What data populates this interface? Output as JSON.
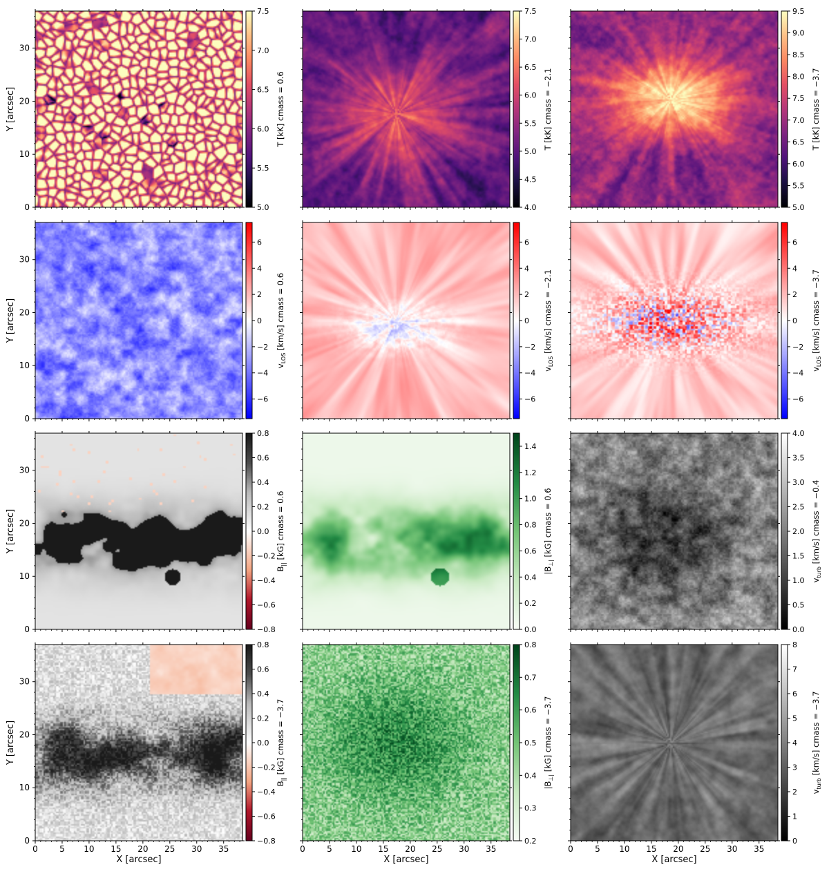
{
  "chart_data": {
    "type": "heatmap",
    "layout": "4 rows x 3 columns of image panels, each with its own colorbar",
    "shared_x": {
      "label": "X [arcsec]",
      "ticks": [
        0,
        5,
        10,
        15,
        20,
        25,
        30,
        35
      ],
      "range": [
        0,
        38.5
      ]
    },
    "shared_y": {
      "label": "Y [arcsec]",
      "ticks": [
        0,
        10,
        20,
        30
      ],
      "range": [
        0,
        37
      ]
    },
    "panels": [
      {
        "id": "T-0.6",
        "colorbar_label": "T [kK] cmass = 0.6",
        "colormap": "magma",
        "range": [
          5.0,
          7.5
        ],
        "ticks": [
          "5.0",
          "5.5",
          "6.0",
          "6.5",
          "7.0",
          "7.5"
        ],
        "pattern": "granulation"
      },
      {
        "id": "T-2.1",
        "colorbar_label": "T [kK] cmass = −2.1",
        "colormap": "magma",
        "range": [
          4.0,
          7.5
        ],
        "ticks": [
          "4.0",
          "4.5",
          "5.0",
          "5.5",
          "6.0",
          "6.5",
          "7.0",
          "7.5"
        ],
        "pattern": "fibrils"
      },
      {
        "id": "T-3.7",
        "colorbar_label": "T [kK] cmass = −3.7",
        "colormap": "magma",
        "range": [
          5.0,
          9.5
        ],
        "ticks": [
          "5.0",
          "5.5",
          "6.0",
          "6.5",
          "7.0",
          "7.5",
          "8.0",
          "8.5",
          "9.0",
          "9.5"
        ],
        "pattern": "bright-core"
      },
      {
        "id": "v-0.6",
        "colorbar_label": "v_LOS [km/s] cmass = 0.6",
        "colormap": "bwr",
        "range": [
          -7.5,
          7.5
        ],
        "ticks": [
          "−6",
          "−4",
          "−2",
          "0",
          "2",
          "4",
          "6"
        ],
        "pattern": "blue-granular"
      },
      {
        "id": "v-2.1",
        "colorbar_label": "v_LOS [km/s] cmass = −2.1",
        "colormap": "bwr",
        "range": [
          -7.5,
          7.5
        ],
        "ticks": [
          "−6",
          "−4",
          "−2",
          "0",
          "2",
          "4",
          "6"
        ],
        "pattern": "red-fibrils"
      },
      {
        "id": "v-3.7",
        "colorbar_label": "v_LOS [km/s] cmass = −3.7",
        "colormap": "bwr",
        "range": [
          -7.5,
          7.5
        ],
        "ticks": [
          "−6",
          "−4",
          "−2",
          "0",
          "2",
          "4",
          "6"
        ],
        "pattern": "mixed-core"
      },
      {
        "id": "Bpar-0.6",
        "colorbar_label": "B_|| [kG] cmass = 0.6",
        "colormap": "RdGy_r",
        "range": [
          -0.8,
          0.8
        ],
        "ticks": [
          "−0.8",
          "−0.6",
          "−0.4",
          "−0.2",
          "0.0",
          "0.2",
          "0.4",
          "0.6",
          "0.8"
        ],
        "pattern": "black-network"
      },
      {
        "id": "Bperp-0.6",
        "colorbar_label": "|B_⊥| [kG] cmass = 0.6",
        "colormap": "Greens",
        "range": [
          0.0,
          1.5
        ],
        "ticks": [
          "0.0",
          "0.2",
          "0.4",
          "0.6",
          "0.8",
          "1.0",
          "1.2",
          "1.4"
        ],
        "pattern": "green-network"
      },
      {
        "id": "vturb-0.4",
        "colorbar_label": "v_turb [km/s] cmass = −0.4",
        "colormap": "gray",
        "range": [
          0.0,
          4.0
        ],
        "ticks": [
          "0.0",
          "0.5",
          "1.0",
          "1.5",
          "2.0",
          "2.5",
          "3.0",
          "3.5",
          "4.0"
        ],
        "pattern": "dark-patchy"
      },
      {
        "id": "Bpar-3.7",
        "colorbar_label": "B_|| [kG] cmass = −3.7",
        "colormap": "RdGy_r",
        "range": [
          -0.8,
          0.8
        ],
        "ticks": [
          "−0.8",
          "−0.6",
          "−0.4",
          "−0.2",
          "0.0",
          "0.2",
          "0.4",
          "0.6",
          "0.8"
        ],
        "pattern": "gray-diffuse"
      },
      {
        "id": "Bperp-3.7",
        "colorbar_label": "|B_⊥| [kG] cmass = −3.7",
        "colormap": "Greens",
        "range": [
          0.2,
          0.8
        ],
        "ticks": [
          "0.2",
          "0.3",
          "0.4",
          "0.5",
          "0.6",
          "0.7",
          "0.8"
        ],
        "pattern": "green-noise"
      },
      {
        "id": "vturb-3.7",
        "colorbar_label": "v_turb [km/s] cmass = −3.7",
        "colormap": "gray",
        "range": [
          0,
          8
        ],
        "ticks": [
          "0",
          "1",
          "2",
          "3",
          "4",
          "5",
          "6",
          "7",
          "8"
        ],
        "pattern": "gray-fibrils"
      }
    ]
  }
}
